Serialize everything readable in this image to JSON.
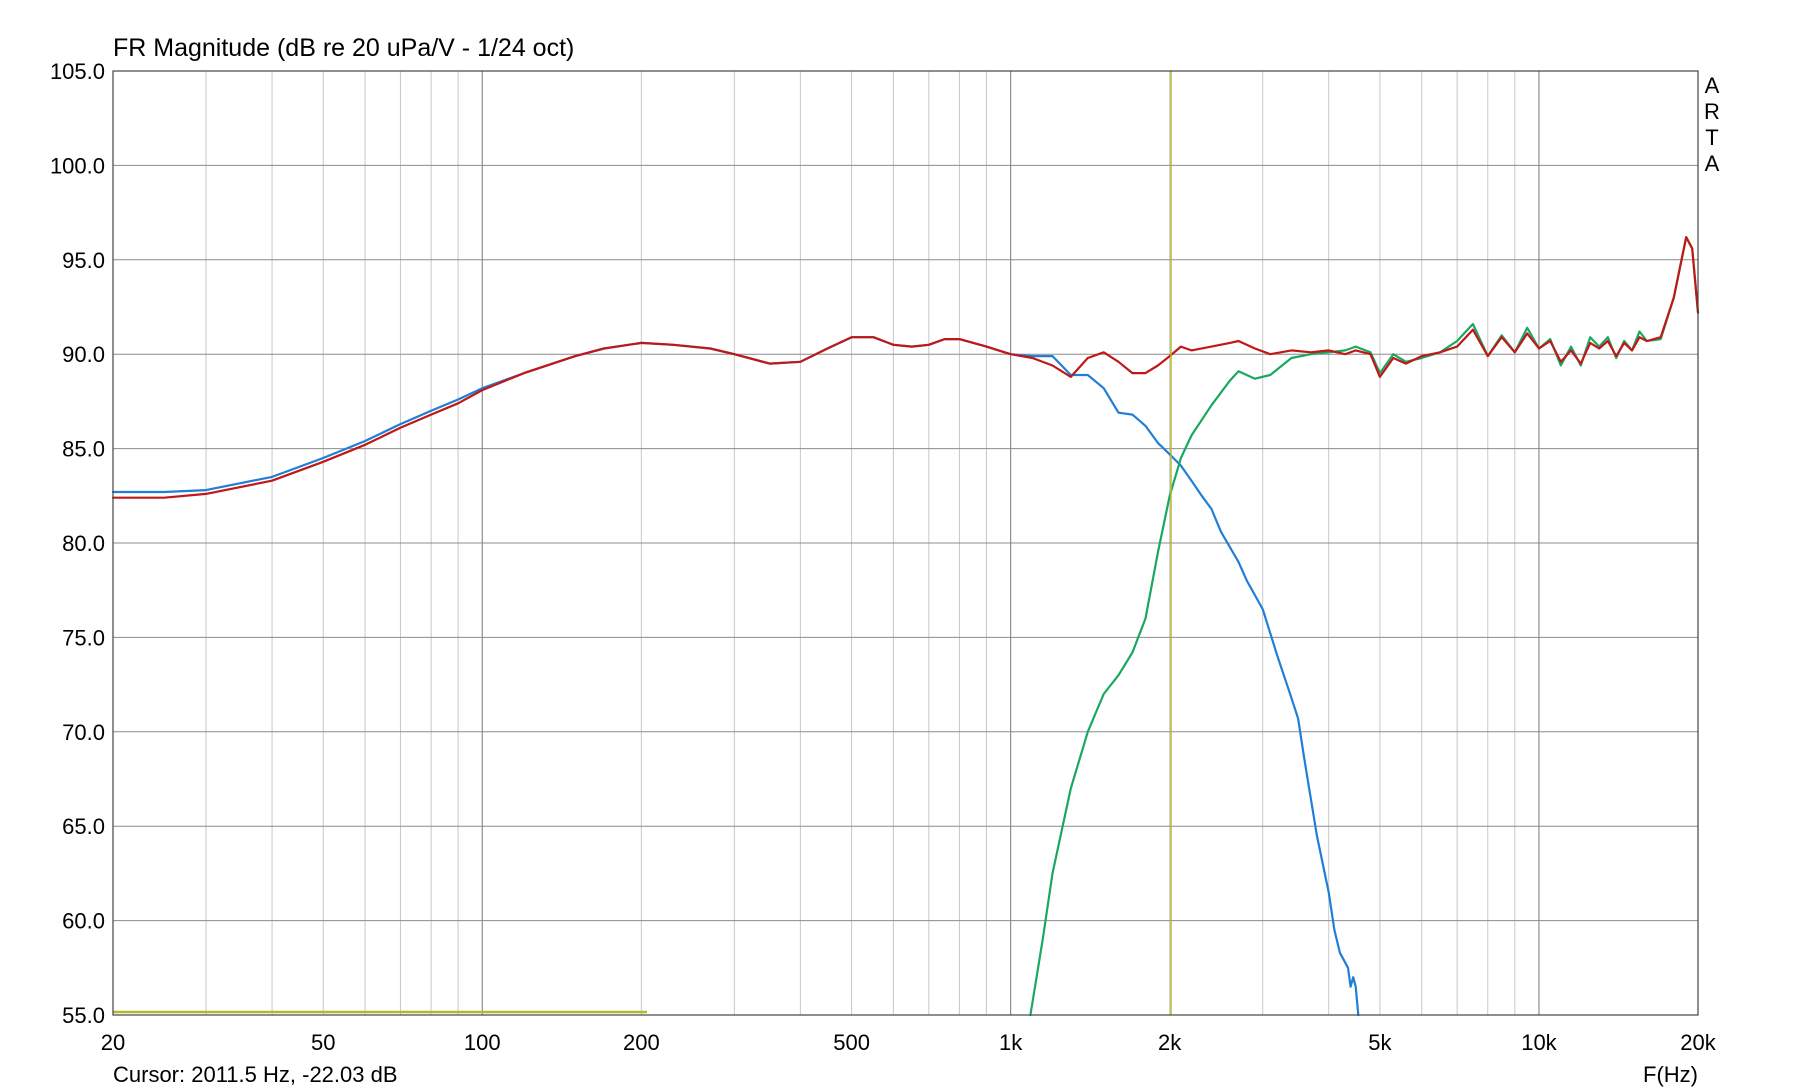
{
  "chart_data": {
    "type": "line",
    "title": "FR Magnitude (dB re 20 uPa/V - 1/24 oct)",
    "xlabel": "F(Hz)",
    "ylabel": "",
    "x_scale": "log",
    "xlim": [
      20,
      20000
    ],
    "ylim": [
      55,
      105
    ],
    "grid": true,
    "y_ticks": [
      55,
      60,
      65,
      70,
      75,
      80,
      85,
      90,
      95,
      100,
      105
    ],
    "y_tick_labels": [
      "55.0",
      "60.0",
      "65.0",
      "70.0",
      "75.0",
      "80.0",
      "85.0",
      "90.0",
      "95.0",
      "100.0",
      "105.0"
    ],
    "x_ticks": [
      20,
      50,
      100,
      200,
      500,
      1000,
      2000,
      5000,
      10000,
      20000
    ],
    "x_tick_labels": [
      "20",
      "50",
      "100",
      "200",
      "500",
      "1k",
      "2k",
      "5k",
      "10k",
      "20k"
    ],
    "cursor_text": "Cursor: 2011.5 Hz, -22.03 dB",
    "cursor_x": 2011.5,
    "brand_letters": [
      "A",
      "R",
      "T",
      "A"
    ],
    "colors": {
      "woofer": "#1f7fd6",
      "tweeter": "#1aa860",
      "sum": "#c01818",
      "cursor": "#b5b82a",
      "grid": "#c8c8c8",
      "grid_major": "#8c8c8c"
    },
    "series": [
      {
        "color": "#1f7fd6",
        "points": [
          [
            20,
            82.7
          ],
          [
            25,
            82.7
          ],
          [
            30,
            82.8
          ],
          [
            40,
            83.5
          ],
          [
            50,
            84.5
          ],
          [
            60,
            85.4
          ],
          [
            70,
            86.3
          ],
          [
            80,
            87.0
          ],
          [
            90,
            87.6
          ],
          [
            100,
            88.2
          ],
          [
            120,
            89.0
          ],
          [
            150,
            89.9
          ],
          [
            170,
            90.3
          ],
          [
            200,
            90.6
          ],
          [
            230,
            90.5
          ],
          [
            270,
            90.3
          ],
          [
            300,
            90.0
          ],
          [
            350,
            89.5
          ],
          [
            400,
            89.6
          ],
          [
            450,
            90.3
          ],
          [
            500,
            90.9
          ],
          [
            550,
            90.9
          ],
          [
            600,
            90.5
          ],
          [
            650,
            90.4
          ],
          [
            700,
            90.5
          ],
          [
            750,
            90.8
          ],
          [
            800,
            90.8
          ],
          [
            900,
            90.4
          ],
          [
            1000,
            90.0
          ],
          [
            1100,
            89.9
          ],
          [
            1200,
            89.9
          ],
          [
            1300,
            88.9
          ],
          [
            1400,
            88.9
          ],
          [
            1500,
            88.2
          ],
          [
            1600,
            86.9
          ],
          [
            1700,
            86.8
          ],
          [
            1800,
            86.2
          ],
          [
            1900,
            85.3
          ],
          [
            2000,
            84.7
          ],
          [
            2100,
            84.1
          ],
          [
            2200,
            83.3
          ],
          [
            2300,
            82.5
          ],
          [
            2400,
            81.8
          ],
          [
            2500,
            80.6
          ],
          [
            2700,
            79.0
          ],
          [
            2800,
            78.0
          ],
          [
            3000,
            76.5
          ],
          [
            3200,
            74.0
          ],
          [
            3400,
            71.8
          ],
          [
            3500,
            70.7
          ],
          [
            3600,
            68.5
          ],
          [
            3800,
            64.5
          ],
          [
            4000,
            61.5
          ],
          [
            4100,
            59.5
          ],
          [
            4200,
            58.3
          ],
          [
            4350,
            57.5
          ],
          [
            4400,
            56.5
          ],
          [
            4450,
            57.0
          ],
          [
            4500,
            56.5
          ],
          [
            4550,
            55.0
          ]
        ]
      },
      {
        "color": "#1aa860",
        "points": [
          [
            1090,
            55.0
          ],
          [
            1150,
            59.0
          ],
          [
            1200,
            62.5
          ],
          [
            1300,
            67.0
          ],
          [
            1400,
            70.0
          ],
          [
            1500,
            72.0
          ],
          [
            1600,
            73.0
          ],
          [
            1700,
            74.2
          ],
          [
            1800,
            76.0
          ],
          [
            1900,
            79.5
          ],
          [
            2000,
            82.5
          ],
          [
            2100,
            84.5
          ],
          [
            2200,
            85.7
          ],
          [
            2400,
            87.3
          ],
          [
            2600,
            88.6
          ],
          [
            2700,
            89.1
          ],
          [
            2900,
            88.7
          ],
          [
            3100,
            88.9
          ],
          [
            3400,
            89.8
          ],
          [
            3700,
            90.0
          ],
          [
            4000,
            90.1
          ],
          [
            4300,
            90.2
          ],
          [
            4500,
            90.4
          ],
          [
            4800,
            90.1
          ],
          [
            5000,
            89.0
          ],
          [
            5300,
            90.0
          ],
          [
            5600,
            89.6
          ],
          [
            6000,
            89.8
          ],
          [
            6500,
            90.1
          ],
          [
            7000,
            90.7
          ],
          [
            7500,
            91.6
          ],
          [
            8000,
            89.9
          ],
          [
            8500,
            91.0
          ],
          [
            9000,
            90.1
          ],
          [
            9500,
            91.4
          ],
          [
            10000,
            90.3
          ],
          [
            10500,
            90.8
          ],
          [
            11000,
            89.4
          ],
          [
            11500,
            90.4
          ],
          [
            12000,
            89.4
          ],
          [
            12500,
            90.9
          ],
          [
            13000,
            90.4
          ],
          [
            13500,
            90.9
          ],
          [
            14000,
            89.8
          ],
          [
            14500,
            90.7
          ],
          [
            15000,
            90.2
          ],
          [
            15500,
            91.2
          ],
          [
            16000,
            90.7
          ],
          [
            17000,
            90.8
          ],
          [
            18000,
            93.0
          ],
          [
            19000,
            96.2
          ],
          [
            19500,
            95.6
          ],
          [
            20000,
            92.2
          ]
        ]
      },
      {
        "color": "#c01818",
        "points": [
          [
            20,
            82.4
          ],
          [
            25,
            82.4
          ],
          [
            30,
            82.6
          ],
          [
            40,
            83.3
          ],
          [
            50,
            84.3
          ],
          [
            60,
            85.2
          ],
          [
            70,
            86.1
          ],
          [
            80,
            86.8
          ],
          [
            90,
            87.4
          ],
          [
            100,
            88.1
          ],
          [
            120,
            89.0
          ],
          [
            150,
            89.9
          ],
          [
            170,
            90.3
          ],
          [
            200,
            90.6
          ],
          [
            230,
            90.5
          ],
          [
            270,
            90.3
          ],
          [
            300,
            90.0
          ],
          [
            350,
            89.5
          ],
          [
            400,
            89.6
          ],
          [
            450,
            90.3
          ],
          [
            500,
            90.9
          ],
          [
            550,
            90.9
          ],
          [
            600,
            90.5
          ],
          [
            650,
            90.4
          ],
          [
            700,
            90.5
          ],
          [
            750,
            90.8
          ],
          [
            800,
            90.8
          ],
          [
            900,
            90.4
          ],
          [
            1000,
            90.0
          ],
          [
            1100,
            89.8
          ],
          [
            1200,
            89.4
          ],
          [
            1300,
            88.8
          ],
          [
            1400,
            89.8
          ],
          [
            1500,
            90.1
          ],
          [
            1600,
            89.6
          ],
          [
            1700,
            89.0
          ],
          [
            1800,
            89.0
          ],
          [
            1900,
            89.4
          ],
          [
            2000,
            89.9
          ],
          [
            2100,
            90.4
          ],
          [
            2200,
            90.2
          ],
          [
            2400,
            90.4
          ],
          [
            2600,
            90.6
          ],
          [
            2700,
            90.7
          ],
          [
            2900,
            90.3
          ],
          [
            3100,
            90.0
          ],
          [
            3400,
            90.2
          ],
          [
            3700,
            90.1
          ],
          [
            4000,
            90.2
          ],
          [
            4300,
            90.0
          ],
          [
            4500,
            90.2
          ],
          [
            4800,
            90.0
          ],
          [
            5000,
            88.8
          ],
          [
            5300,
            89.8
          ],
          [
            5600,
            89.5
          ],
          [
            6000,
            89.9
          ],
          [
            6500,
            90.1
          ],
          [
            7000,
            90.4
          ],
          [
            7500,
            91.3
          ],
          [
            8000,
            89.9
          ],
          [
            8500,
            90.9
          ],
          [
            9000,
            90.1
          ],
          [
            9500,
            91.1
          ],
          [
            10000,
            90.3
          ],
          [
            10500,
            90.7
          ],
          [
            11000,
            89.6
          ],
          [
            11500,
            90.2
          ],
          [
            12000,
            89.5
          ],
          [
            12500,
            90.6
          ],
          [
            13000,
            90.3
          ],
          [
            13500,
            90.7
          ],
          [
            14000,
            89.9
          ],
          [
            14500,
            90.6
          ],
          [
            15000,
            90.2
          ],
          [
            15500,
            90.9
          ],
          [
            16000,
            90.7
          ],
          [
            17000,
            90.9
          ],
          [
            18000,
            93.0
          ],
          [
            19000,
            96.2
          ],
          [
            19500,
            95.6
          ],
          [
            20000,
            92.2
          ]
        ]
      }
    ]
  }
}
